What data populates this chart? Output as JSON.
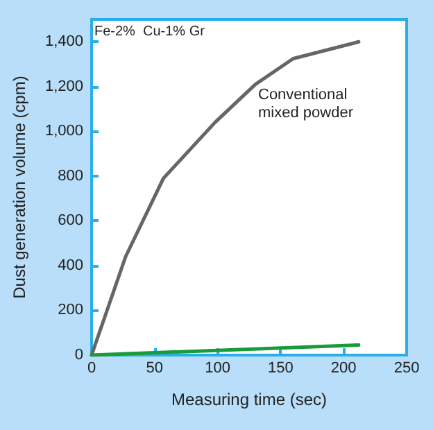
{
  "chart_data": {
    "type": "line",
    "xlabel": "Measuring time (sec)",
    "ylabel": "Dust generation volume (cpm)",
    "annotations": [
      "Fe-2%  Cu-1% Gr"
    ],
    "series": [
      {
        "name": "Conventional mixed powder",
        "color": "#666666",
        "x": [
          0,
          27,
          57,
          98,
          130,
          160,
          212
        ],
        "values": [
          0,
          440,
          790,
          1040,
          1210,
          1325,
          1400
        ]
      },
      {
        "color": "#1a9a3a",
        "x": [
          0,
          212
        ],
        "values": [
          0,
          45
        ]
      }
    ],
    "xlim": [
      0,
      250
    ],
    "xticks": [
      0,
      50,
      100,
      150,
      200,
      250
    ],
    "ylim": [
      0,
      1500
    ],
    "yticks": [
      0,
      200,
      400,
      600,
      800,
      {
        "value": 1000,
        "label": "1,000"
      },
      {
        "value": 1200,
        "label": "1,200"
      },
      {
        "value": 1400,
        "label": "1,400"
      }
    ],
    "grid": false,
    "legend": false,
    "marker": "none",
    "line_style": "solid"
  }
}
